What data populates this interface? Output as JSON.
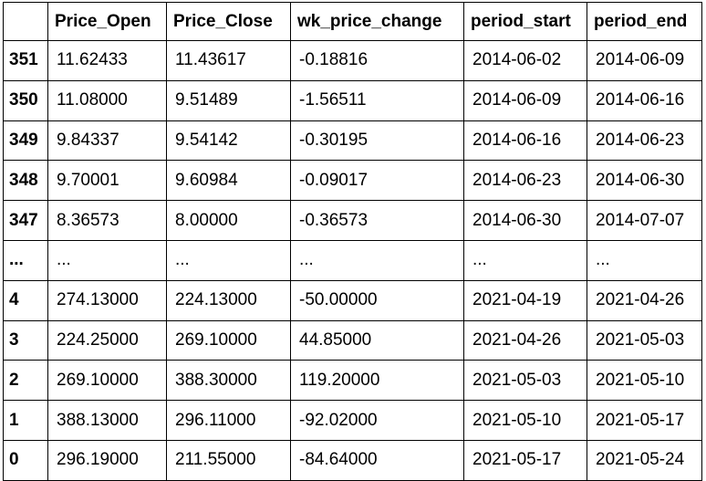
{
  "table": {
    "columns": [
      "",
      "Price_Open",
      "Price_Close",
      "wk_price_change",
      "period_start",
      "period_end"
    ],
    "rows": [
      {
        "index": "351",
        "cells": [
          "11.62433",
          "11.43617",
          "-0.18816",
          "2014-06-02",
          "2014-06-09"
        ]
      },
      {
        "index": "350",
        "cells": [
          "11.08000",
          "9.51489",
          "-1.56511",
          "2014-06-09",
          "2014-06-16"
        ]
      },
      {
        "index": "349",
        "cells": [
          "9.84337",
          "9.54142",
          "-0.30195",
          "2014-06-16",
          "2014-06-23"
        ]
      },
      {
        "index": "348",
        "cells": [
          "9.70001",
          "9.60984",
          "-0.09017",
          "2014-06-23",
          "2014-06-30"
        ]
      },
      {
        "index": "347",
        "cells": [
          "8.36573",
          "8.00000",
          "-0.36573",
          "2014-06-30",
          "2014-07-07"
        ]
      },
      {
        "index": "...",
        "cells": [
          "...",
          "...",
          "...",
          "...",
          "..."
        ]
      },
      {
        "index": "4",
        "cells": [
          "274.13000",
          "224.13000",
          "-50.00000",
          "2021-04-19",
          "2021-04-26"
        ]
      },
      {
        "index": "3",
        "cells": [
          "224.25000",
          "269.10000",
          "44.85000",
          "2021-04-26",
          "2021-05-03"
        ]
      },
      {
        "index": "2",
        "cells": [
          "269.10000",
          "388.30000",
          "119.20000",
          "2021-05-03",
          "2021-05-10"
        ]
      },
      {
        "index": "1",
        "cells": [
          "388.13000",
          "296.11000",
          "-92.02000",
          "2021-05-10",
          "2021-05-17"
        ]
      },
      {
        "index": "0",
        "cells": [
          "296.19000",
          "211.55000",
          "-84.64000",
          "2021-05-17",
          "2021-05-24"
        ]
      }
    ]
  }
}
